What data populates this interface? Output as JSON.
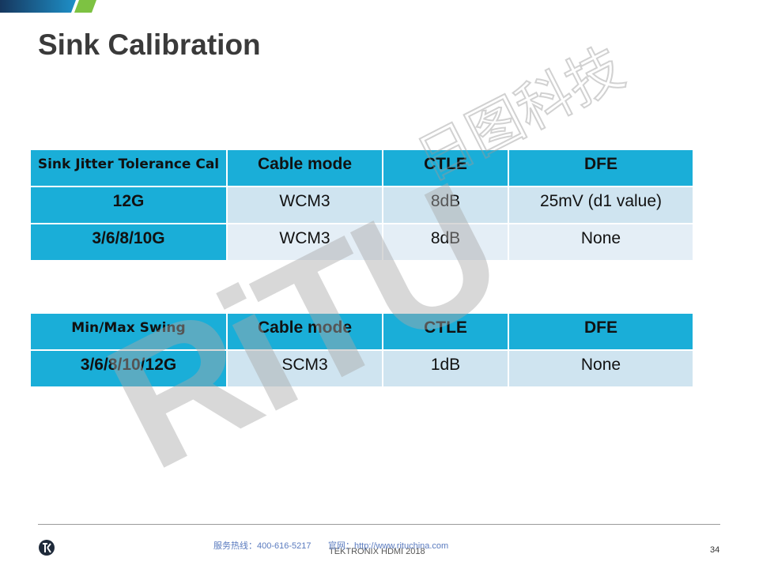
{
  "slide": {
    "title": "Sink Calibration",
    "page_number": "34"
  },
  "table1": {
    "headers": [
      "Sink Jitter Tolerance Cal",
      "Cable mode",
      "CTLE",
      "DFE"
    ],
    "rows": [
      [
        "12G",
        "WCM3",
        "8dB",
        "25mV  (d1 value)"
      ],
      [
        "3/6/8/10G",
        "WCM3",
        "8dB",
        "None"
      ]
    ]
  },
  "table2": {
    "headers": [
      "Min/Max Swing",
      "Cable mode",
      "CTLE",
      "DFE"
    ],
    "rows": [
      [
        "3/6/8/10/12G",
        "SCM3",
        "1dB",
        "None"
      ]
    ]
  },
  "watermark": {
    "latin": "RiTU",
    "chinese": "日图科技"
  },
  "footer": {
    "center_text": "TEKTRONIX HDMI 2018",
    "hotline": "服务热线：400-616-5217",
    "website": "官网：http://www.rituchina.com"
  },
  "colors": {
    "accent": "#1aaed8",
    "cell_light": "#cfe4f0",
    "cell_lighter": "#e4eef6",
    "title": "#3a3a3a"
  }
}
